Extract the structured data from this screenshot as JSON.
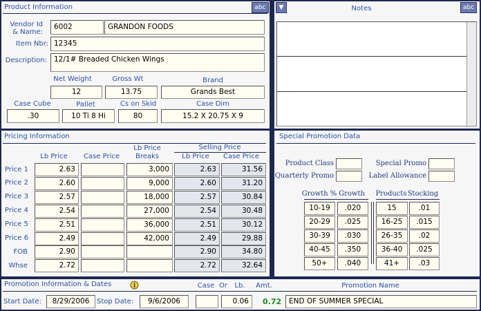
{
  "product_info": {
    "title": "Product Information",
    "spell_button": "abc",
    "vendor_label": [
      "Vendor Id",
      "& Name:"
    ],
    "vendor_id": "6002",
    "vendor_name": "GRANDON FOODS",
    "item_label": "Item Nbr:",
    "item_nbr": "12345",
    "description_label": "Description:",
    "description": "12/1# Breaded Chicken Wings",
    "fields": [
      {
        "label": "Net Weight",
        "value": "12"
      },
      {
        "label": "Gross Wt",
        "value": "13.75"
      },
      {
        "label": "Brand",
        "value": "Grands Best"
      },
      {
        "label": "Case Cube",
        "value": ".30"
      },
      {
        "label": "Pallet",
        "value": "10 Ti 8 Hi"
      },
      {
        "label": "Cs on Skid",
        "value": "80"
      },
      {
        "label": "Case Dim",
        "value": "15.2 X 20.75 X 9"
      }
    ]
  },
  "notes": {
    "title": "Notes",
    "spell_button": "abc"
  },
  "pricing": {
    "title": "Pricing Information",
    "headers": {
      "lb_price": "Lb Price",
      "case_price": "Case Price",
      "breaks": [
        "Lb Price",
        "Breaks"
      ],
      "selling_price": "Selling Price",
      "sell_lb": "Lb Price",
      "sell_case": "Case Price"
    },
    "rows": [
      {
        "label": "Price 1",
        "lb_price": "2.63",
        "breaks": "3,000",
        "sell_lb": "2.63",
        "sell_case": "31.56"
      },
      {
        "label": "Price 2",
        "lb_price": "2.60",
        "breaks": "9,000",
        "sell_lb": "2.60",
        "sell_case": "31.20"
      },
      {
        "label": "Price 3",
        "lb_price": "2.57",
        "breaks": "18,000",
        "sell_lb": "2.57",
        "sell_case": "30.84"
      },
      {
        "label": "Price 4",
        "lb_price": "2.54",
        "breaks": "27,000",
        "sell_lb": "2.54",
        "sell_case": "30.48"
      },
      {
        "label": "Price 5",
        "lb_price": "2.51",
        "breaks": "36,000",
        "sell_lb": "2.51",
        "sell_case": "30.12"
      },
      {
        "label": "Price 6",
        "lb_price": "2.49",
        "breaks": "42,000",
        "sell_lb": "2.49",
        "sell_case": "29.88"
      },
      {
        "label": "FOB",
        "lb_price": "2.90",
        "sell_lb": "2.90",
        "sell_case": "34.80"
      },
      {
        "label": "Whse",
        "lb_price": "2.72",
        "sell_lb": "2.72",
        "sell_case": "32.64"
      }
    ]
  },
  "special_promotion": {
    "title": "Special Promotion Data",
    "fields": [
      "Product Class",
      "Special Promo",
      "Quarterly Promo",
      "Label Allowance"
    ],
    "headers": [
      "Growth %",
      "Growth",
      "Products",
      "Stocking"
    ],
    "rows": [
      [
        "10-19",
        ".020",
        "15",
        ".01"
      ],
      [
        "20-29",
        ".025",
        "16-25",
        ".015"
      ],
      [
        "30-39",
        ".030",
        "26-35",
        ".02"
      ],
      [
        "40-45",
        ".350",
        "36-40",
        ".025"
      ],
      [
        "50+",
        ".040",
        "41+",
        ".03"
      ]
    ]
  },
  "promotion": {
    "title": "Promotion Information & Dates",
    "headers": [
      "Case",
      "Or",
      "Lb.",
      "Amt.",
      "Promotion Name"
    ],
    "start_label": "Start Date:",
    "start_date": "8/29/2006",
    "stop_label": "Stop Date:",
    "stop_date": "9/6/2006",
    "lb": "0.06",
    "amount": "0.72",
    "name": "END OF SUMMER SPECIAL"
  }
}
